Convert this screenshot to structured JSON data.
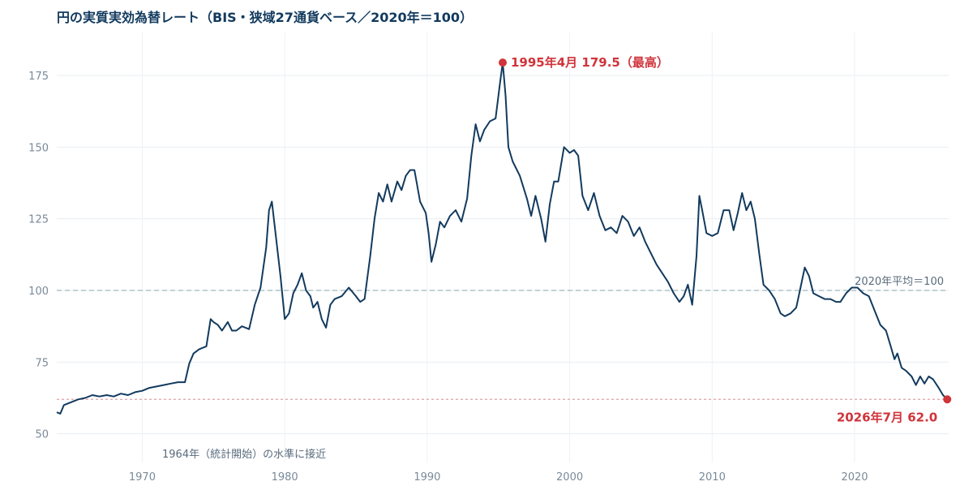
{
  "chart_data": {
    "type": "line",
    "title": "円の実質実効為替レート（BIS・狭域27通貨ベース／2020年＝100）",
    "xlabel": "",
    "ylabel": "",
    "xlim": [
      1964.0,
      2026.6
    ],
    "ylim": [
      40,
      190
    ],
    "x_ticks": [
      1970,
      1980,
      1990,
      2000,
      2010,
      2020
    ],
    "y_ticks": [
      50,
      75,
      100,
      125,
      150,
      175
    ],
    "grid": true,
    "series": [
      {
        "color": "#123a5e",
        "points": [
          [
            1964.0,
            57.5
          ],
          [
            1964.25,
            57.0
          ],
          [
            1964.5,
            60.0
          ],
          [
            1965.0,
            61.0
          ],
          [
            1965.5,
            62.0
          ],
          [
            1966.0,
            62.5
          ],
          [
            1966.5,
            63.5
          ],
          [
            1967.0,
            63.0
          ],
          [
            1967.5,
            63.5
          ],
          [
            1968.0,
            63.0
          ],
          [
            1968.5,
            64.0
          ],
          [
            1969.0,
            63.5
          ],
          [
            1969.5,
            64.5
          ],
          [
            1970.0,
            65.0
          ],
          [
            1970.5,
            66.0
          ],
          [
            1971.0,
            66.5
          ],
          [
            1971.5,
            67.0
          ],
          [
            1972.0,
            67.5
          ],
          [
            1972.5,
            68.0
          ],
          [
            1973.0,
            68.0
          ],
          [
            1973.3,
            74.5
          ],
          [
            1973.6,
            78.0
          ],
          [
            1974.0,
            79.5
          ],
          [
            1974.5,
            80.5
          ],
          [
            1974.8,
            90.0
          ],
          [
            1975.0,
            89.0
          ],
          [
            1975.3,
            88.0
          ],
          [
            1975.6,
            86.0
          ],
          [
            1976.0,
            89.0
          ],
          [
            1976.3,
            86.0
          ],
          [
            1976.6,
            86.0
          ],
          [
            1977.0,
            87.5
          ],
          [
            1977.5,
            86.5
          ],
          [
            1977.9,
            95.0
          ],
          [
            1978.3,
            101.0
          ],
          [
            1978.7,
            115.0
          ],
          [
            1978.9,
            128.0
          ],
          [
            1979.1,
            131.0
          ],
          [
            1979.4,
            118.0
          ],
          [
            1979.7,
            105.0
          ],
          [
            1980.0,
            90.0
          ],
          [
            1980.3,
            92.0
          ],
          [
            1980.6,
            99.0
          ],
          [
            1980.9,
            102.0
          ],
          [
            1981.2,
            106.0
          ],
          [
            1981.5,
            100.0
          ],
          [
            1981.8,
            98.0
          ],
          [
            1982.0,
            94.0
          ],
          [
            1982.3,
            96.0
          ],
          [
            1982.6,
            90.0
          ],
          [
            1982.9,
            87.0
          ],
          [
            1983.2,
            95.0
          ],
          [
            1983.5,
            97.0
          ],
          [
            1984.0,
            98.0
          ],
          [
            1984.5,
            101.0
          ],
          [
            1985.0,
            98.0
          ],
          [
            1985.3,
            96.0
          ],
          [
            1985.6,
            97.0
          ],
          [
            1986.0,
            112.0
          ],
          [
            1986.3,
            125.0
          ],
          [
            1986.6,
            134.0
          ],
          [
            1986.9,
            131.0
          ],
          [
            1987.2,
            137.0
          ],
          [
            1987.5,
            131.0
          ],
          [
            1987.9,
            138.0
          ],
          [
            1988.2,
            135.0
          ],
          [
            1988.5,
            140.0
          ],
          [
            1988.8,
            142.0
          ],
          [
            1989.1,
            142.0
          ],
          [
            1989.5,
            131.0
          ],
          [
            1989.9,
            127.0
          ],
          [
            1990.1,
            120.0
          ],
          [
            1990.3,
            110.0
          ],
          [
            1990.6,
            116.0
          ],
          [
            1990.9,
            124.0
          ],
          [
            1991.2,
            122.0
          ],
          [
            1991.6,
            126.0
          ],
          [
            1992.0,
            128.0
          ],
          [
            1992.4,
            124.0
          ],
          [
            1992.8,
            132.0
          ],
          [
            1993.1,
            147.0
          ],
          [
            1993.4,
            158.0
          ],
          [
            1993.7,
            152.0
          ],
          [
            1994.0,
            156.0
          ],
          [
            1994.4,
            159.0
          ],
          [
            1994.8,
            160.0
          ],
          [
            1995.1,
            172.0
          ],
          [
            1995.3,
            179.5
          ],
          [
            1995.5,
            168.0
          ],
          [
            1995.7,
            150.0
          ],
          [
            1996.0,
            145.0
          ],
          [
            1996.5,
            140.0
          ],
          [
            1997.0,
            132.0
          ],
          [
            1997.3,
            126.0
          ],
          [
            1997.6,
            133.0
          ],
          [
            1998.0,
            125.0
          ],
          [
            1998.3,
            117.0
          ],
          [
            1998.6,
            130.0
          ],
          [
            1998.9,
            138.0
          ],
          [
            1999.2,
            138.0
          ],
          [
            1999.6,
            150.0
          ],
          [
            2000.0,
            148.0
          ],
          [
            2000.3,
            149.0
          ],
          [
            2000.6,
            147.0
          ],
          [
            2000.9,
            133.0
          ],
          [
            2001.3,
            128.0
          ],
          [
            2001.7,
            134.0
          ],
          [
            2002.1,
            126.0
          ],
          [
            2002.5,
            121.0
          ],
          [
            2002.9,
            122.0
          ],
          [
            2003.3,
            120.0
          ],
          [
            2003.7,
            126.0
          ],
          [
            2004.1,
            124.0
          ],
          [
            2004.5,
            119.0
          ],
          [
            2004.9,
            122.0
          ],
          [
            2005.3,
            117.0
          ],
          [
            2005.7,
            113.0
          ],
          [
            2006.1,
            109.0
          ],
          [
            2006.5,
            106.0
          ],
          [
            2006.9,
            103.0
          ],
          [
            2007.3,
            99.0
          ],
          [
            2007.7,
            96.0
          ],
          [
            2008.0,
            98.0
          ],
          [
            2008.3,
            102.0
          ],
          [
            2008.6,
            95.0
          ],
          [
            2008.9,
            112.0
          ],
          [
            2009.1,
            133.0
          ],
          [
            2009.3,
            128.0
          ],
          [
            2009.6,
            120.0
          ],
          [
            2010.0,
            119.0
          ],
          [
            2010.4,
            120.0
          ],
          [
            2010.8,
            128.0
          ],
          [
            2011.2,
            128.0
          ],
          [
            2011.5,
            121.0
          ],
          [
            2011.8,
            127.0
          ],
          [
            2012.1,
            134.0
          ],
          [
            2012.4,
            128.0
          ],
          [
            2012.7,
            131.0
          ],
          [
            2013.0,
            125.0
          ],
          [
            2013.3,
            113.0
          ],
          [
            2013.6,
            102.0
          ],
          [
            2014.0,
            100.0
          ],
          [
            2014.4,
            97.0
          ],
          [
            2014.8,
            92.0
          ],
          [
            2015.1,
            91.0
          ],
          [
            2015.5,
            92.0
          ],
          [
            2015.9,
            94.0
          ],
          [
            2016.2,
            101.0
          ],
          [
            2016.5,
            108.0
          ],
          [
            2016.8,
            105.0
          ],
          [
            2017.1,
            99.0
          ],
          [
            2017.5,
            98.0
          ],
          [
            2017.9,
            97.0
          ],
          [
            2018.3,
            97.0
          ],
          [
            2018.7,
            96.0
          ],
          [
            2019.0,
            96.0
          ],
          [
            2019.4,
            99.0
          ],
          [
            2019.8,
            101.0
          ],
          [
            2020.2,
            101.0
          ],
          [
            2020.6,
            99.0
          ],
          [
            2021.0,
            98.0
          ],
          [
            2021.4,
            93.0
          ],
          [
            2021.8,
            88.0
          ],
          [
            2022.2,
            86.0
          ],
          [
            2022.5,
            81.0
          ],
          [
            2022.8,
            76.0
          ],
          [
            2023.0,
            78.0
          ],
          [
            2023.3,
            73.0
          ],
          [
            2023.6,
            72.0
          ],
          [
            2024.0,
            70.0
          ],
          [
            2024.3,
            67.0
          ],
          [
            2024.6,
            70.0
          ],
          [
            2024.9,
            67.5
          ],
          [
            2025.2,
            70.0
          ],
          [
            2025.5,
            69.0
          ],
          [
            2025.9,
            66.0
          ],
          [
            2026.2,
            63.5
          ],
          [
            2026.5,
            62.0
          ]
        ]
      }
    ],
    "reference_lines": [
      {
        "y": 100,
        "label": "2020年平均＝100",
        "color": "#9fb8be"
      },
      {
        "y": 62.0,
        "label": "",
        "color": "#e0a0a6"
      }
    ],
    "annotations": {
      "peak": {
        "x": 1995.3,
        "y": 179.5,
        "label": "1995年4月 179.5（最高）",
        "color": "#d0343b"
      },
      "latest": {
        "x": 2026.5,
        "y": 62.0,
        "label": "2026年7月 62.0",
        "color": "#d0343b"
      },
      "note": {
        "label": "1964年（統計開始）の水準に接近"
      }
    }
  }
}
